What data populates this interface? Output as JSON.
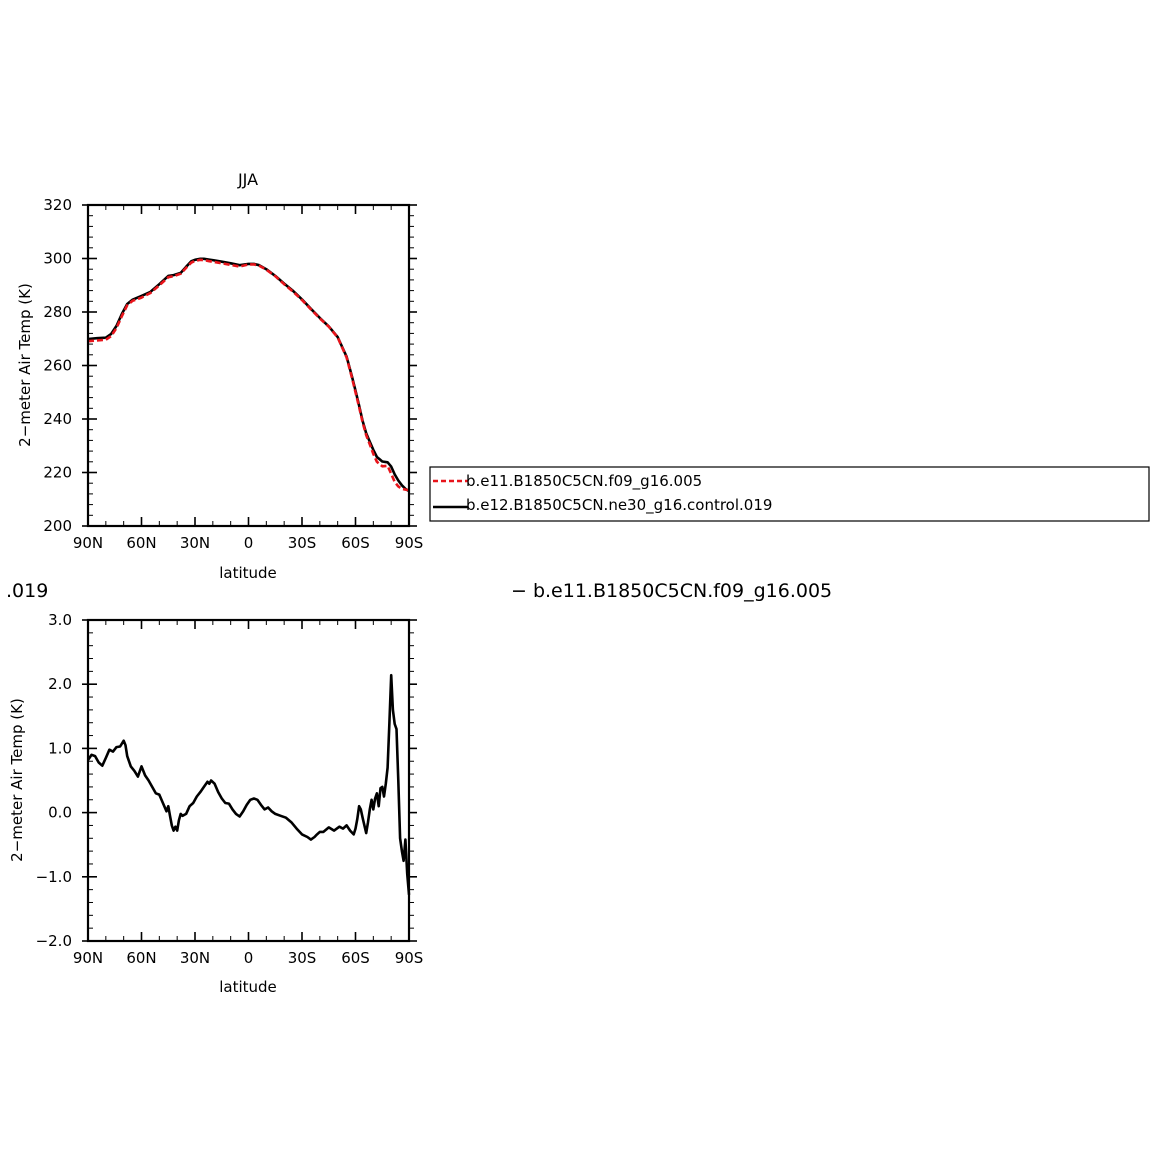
{
  "colors": {
    "series_a": "#e8141b",
    "series_b": "#000000",
    "axis": "#000000"
  },
  "header_fragments": {
    "left": ".019",
    "right": "− b.e11.B1850C5CN.f09_g16.005"
  },
  "chart_data": [
    {
      "type": "line",
      "title": "JJA",
      "xlabel": "latitude",
      "ylabel": "2−meter Air Temp (K)",
      "xlim": [
        90,
        -90
      ],
      "ylim": [
        200,
        320
      ],
      "xticks": [
        {
          "value": 90,
          "label": "90N"
        },
        {
          "value": 60,
          "label": "60N"
        },
        {
          "value": 30,
          "label": "30N"
        },
        {
          "value": 0,
          "label": "0"
        },
        {
          "value": -30,
          "label": "30S"
        },
        {
          "value": -60,
          "label": "60S"
        },
        {
          "value": -90,
          "label": "90S"
        }
      ],
      "yticks": [
        {
          "value": 200,
          "label": "200"
        },
        {
          "value": 220,
          "label": "220"
        },
        {
          "value": 240,
          "label": "240"
        },
        {
          "value": 260,
          "label": "260"
        },
        {
          "value": 280,
          "label": "280"
        },
        {
          "value": 300,
          "label": "300"
        },
        {
          "value": 320,
          "label": "320"
        }
      ],
      "legend": {
        "placement": "right",
        "entries": [
          {
            "name": "b.e11.B1850C5CN.f09_g16.005",
            "style": "dashed",
            "color": "#e8141b"
          },
          {
            "name": "b.e12.B1850C5CN.ne30_g16.control.019",
            "style": "solid",
            "color": "#000000"
          }
        ]
      },
      "series": [
        {
          "name": "b.e11.B1850C5CN.f09_g16.005",
          "style": "dashed",
          "color": "#e8141b",
          "x": [
            90,
            85,
            80,
            77,
            74,
            71,
            68,
            65,
            60,
            55,
            50,
            45,
            42,
            38,
            35,
            32,
            30,
            27,
            25,
            22,
            20,
            15,
            10,
            5,
            0,
            -3,
            -6,
            -10,
            -15,
            -20,
            -25,
            -30,
            -35,
            -40,
            -45,
            -50,
            -55,
            -58,
            -60,
            -62,
            -64,
            -66,
            -68,
            -70,
            -72,
            -75,
            -78,
            -80,
            -82,
            -84,
            -86,
            -88,
            -90
          ],
          "y": [
            269.1,
            269.4,
            269.6,
            271.0,
            274.0,
            278.5,
            282.5,
            284.2,
            285.4,
            287.1,
            290.0,
            293.0,
            293.4,
            294.3,
            296.5,
            298.5,
            299.1,
            299.5,
            299.4,
            299.0,
            298.8,
            298.2,
            297.6,
            297.0,
            297.8,
            297.8,
            297.3,
            295.8,
            293.4,
            290.4,
            287.6,
            284.5,
            281.0,
            277.6,
            274.5,
            270.5,
            263.0,
            255.5,
            250.0,
            244.5,
            238.8,
            234.0,
            230.5,
            227.0,
            224.0,
            222.3,
            222.5,
            219.5,
            216.5,
            214.8,
            213.9,
            213.6,
            213.4
          ]
        },
        {
          "name": "b.e12.B1850C5CN.ne30_g16.control.019",
          "style": "solid",
          "color": "#000000",
          "x": [
            90,
            85,
            80,
            77,
            74,
            71,
            68,
            65,
            60,
            55,
            50,
            45,
            42,
            38,
            35,
            32,
            30,
            27,
            25,
            22,
            20,
            15,
            10,
            5,
            0,
            -3,
            -6,
            -10,
            -15,
            -20,
            -25,
            -30,
            -35,
            -40,
            -45,
            -50,
            -55,
            -58,
            -60,
            -62,
            -64,
            -66,
            -68,
            -70,
            -72,
            -75,
            -78,
            -80,
            -82,
            -84,
            -86,
            -88,
            -90
          ],
          "y": [
            269.9,
            270.2,
            270.4,
            271.8,
            274.8,
            279.3,
            283.0,
            284.6,
            286.0,
            287.5,
            290.4,
            293.5,
            293.8,
            294.6,
            296.9,
            299.0,
            299.5,
            299.9,
            299.9,
            299.6,
            299.4,
            298.8,
            298.2,
            297.5,
            298.0,
            298.0,
            297.5,
            296.0,
            293.5,
            290.6,
            287.9,
            284.7,
            281.2,
            277.8,
            274.6,
            270.6,
            263.3,
            256.0,
            250.6,
            245.0,
            239.3,
            234.7,
            231.5,
            228.5,
            225.8,
            224.1,
            223.8,
            222.2,
            219.3,
            217.0,
            215.2,
            213.9,
            213.0
          ]
        }
      ]
    },
    {
      "type": "line",
      "title": "",
      "xlabel": "latitude",
      "ylabel": "2−meter Air Temp (K)",
      "xlim": [
        90,
        -90
      ],
      "ylim": [
        -2.0,
        3.0
      ],
      "xticks": [
        {
          "value": 90,
          "label": "90N"
        },
        {
          "value": 60,
          "label": "60N"
        },
        {
          "value": 30,
          "label": "30N"
        },
        {
          "value": 0,
          "label": "0"
        },
        {
          "value": -30,
          "label": "30S"
        },
        {
          "value": -60,
          "label": "60S"
        },
        {
          "value": -90,
          "label": "90S"
        }
      ],
      "yticks": [
        {
          "value": -2.0,
          "label": "−2.0"
        },
        {
          "value": -1.0,
          "label": "−1.0"
        },
        {
          "value": 0.0,
          "label": "0.0"
        },
        {
          "value": 1.0,
          "label": "1.0"
        },
        {
          "value": 2.0,
          "label": "2.0"
        },
        {
          "value": 3.0,
          "label": "3.0"
        }
      ],
      "series": [
        {
          "name": "",
          "style": "solid",
          "color": "#000000",
          "x": [
            90,
            88,
            86,
            84,
            82,
            80,
            78,
            76,
            74,
            72,
            70,
            69,
            68,
            66,
            64,
            62,
            60,
            59,
            58,
            56,
            54,
            52,
            50,
            48,
            46,
            45,
            44,
            43,
            42,
            41,
            40,
            39,
            38,
            37,
            35,
            33,
            31,
            29,
            27,
            25,
            23,
            22,
            21,
            19,
            17,
            15,
            13,
            11,
            9,
            7,
            5,
            3,
            1,
            -1,
            -3,
            -5,
            -7,
            -9,
            -11,
            -13,
            -15,
            -18,
            -21,
            -24,
            -27,
            -30,
            -33,
            -35,
            -37,
            -38,
            -40,
            -42,
            -45,
            -48,
            -51,
            -53,
            -55,
            -57,
            -59,
            -60,
            -61,
            -62,
            -63,
            -64,
            -65,
            -66,
            -67,
            -68,
            -69,
            -70,
            -71,
            -72,
            -73,
            -74,
            -75,
            -76,
            -77,
            -78,
            -79,
            -80,
            -81,
            -82,
            -83,
            -84,
            -85,
            -86,
            -87,
            -88,
            -89,
            -90
          ],
          "y": [
            0.82,
            0.9,
            0.88,
            0.78,
            0.73,
            0.85,
            0.98,
            0.95,
            1.02,
            1.03,
            1.12,
            1.05,
            0.88,
            0.72,
            0.65,
            0.56,
            0.72,
            0.65,
            0.58,
            0.5,
            0.4,
            0.3,
            0.28,
            0.15,
            0.02,
            0.1,
            -0.05,
            -0.2,
            -0.28,
            -0.22,
            -0.28,
            -0.12,
            -0.02,
            -0.05,
            -0.02,
            0.1,
            0.15,
            0.25,
            0.32,
            0.4,
            0.48,
            0.45,
            0.5,
            0.45,
            0.32,
            0.22,
            0.15,
            0.14,
            0.05,
            -0.02,
            -0.06,
            0.02,
            0.12,
            0.2,
            0.22,
            0.2,
            0.12,
            0.05,
            0.08,
            0.02,
            -0.02,
            -0.05,
            -0.08,
            -0.15,
            -0.25,
            -0.34,
            -0.38,
            -0.42,
            -0.38,
            -0.35,
            -0.3,
            -0.3,
            -0.23,
            -0.28,
            -0.22,
            -0.25,
            -0.2,
            -0.28,
            -0.34,
            -0.25,
            -0.1,
            0.1,
            0.05,
            -0.08,
            -0.2,
            -0.32,
            -0.15,
            0.05,
            0.2,
            0.05,
            0.22,
            0.3,
            0.1,
            0.38,
            0.4,
            0.25,
            0.45,
            0.7,
            1.4,
            2.14,
            1.6,
            1.38,
            1.3,
            0.5,
            -0.4,
            -0.6,
            -0.75,
            -0.42,
            -0.95,
            -1.28
          ]
        }
      ]
    }
  ]
}
